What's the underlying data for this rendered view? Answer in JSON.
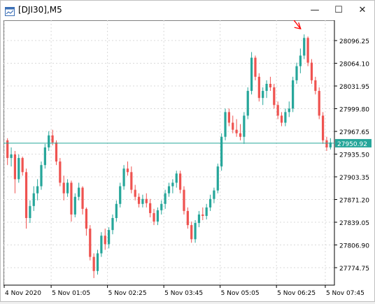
{
  "window": {
    "title": "[DJI30],M5",
    "minimize_label": "—",
    "maximize_label": "☐",
    "close_label": "✕",
    "icon": "chart-window-icon"
  },
  "colors": {
    "bull": "#26a69a",
    "bear": "#ef5350",
    "grid": "#d9d9d9",
    "price_line": "#26a69a",
    "price_label_bg": "#26a69a",
    "arrow": "#ff0000"
  },
  "chart_data": {
    "type": "candlestick",
    "title": "",
    "symbol": "DJI30",
    "timeframe": "M5",
    "current_price": 27950.92,
    "current_price_label": "27950.92",
    "ylim": [
      27750,
      28125
    ],
    "y_ticks": [
      "28096.25",
      "28064.10",
      "28031.95",
      "27999.80",
      "27967.65",
      "27935.50",
      "27903.35",
      "27871.20",
      "27839.05",
      "27806.90",
      "27774.75"
    ],
    "x_ticks": [
      "4 Nov 2020",
      "5 Nov 01:05",
      "5 Nov 02:25",
      "5 Nov 03:45",
      "5 Nov 05:05",
      "5 Nov 06:25",
      "5 Nov 07:45"
    ],
    "annotations": [
      {
        "type": "arrow",
        "color": "red",
        "near": "high"
      }
    ],
    "candles": [
      [
        27955,
        27958,
        27920,
        27930
      ],
      [
        27930,
        27945,
        27918,
        27935
      ],
      [
        27935,
        27940,
        27880,
        27900
      ],
      [
        27900,
        27935,
        27895,
        27930
      ],
      [
        27930,
        27932,
        27905,
        27910
      ],
      [
        27910,
        27915,
        27830,
        27845
      ],
      [
        27845,
        27870,
        27838,
        27862
      ],
      [
        27862,
        27890,
        27855,
        27880
      ],
      [
        27880,
        27900,
        27870,
        27890
      ],
      [
        27890,
        27925,
        27885,
        27920
      ],
      [
        27920,
        27950,
        27915,
        27945
      ],
      [
        27945,
        27968,
        27940,
        27962
      ],
      [
        27962,
        27970,
        27948,
        27952
      ],
      [
        27952,
        27955,
        27920,
        27925
      ],
      [
        27925,
        27930,
        27890,
        27895
      ],
      [
        27895,
        27905,
        27870,
        27880
      ],
      [
        27880,
        27900,
        27875,
        27895
      ],
      [
        27895,
        27898,
        27840,
        27850
      ],
      [
        27850,
        27880,
        27846,
        27875
      ],
      [
        27875,
        27895,
        27870,
        27888
      ],
      [
        27888,
        27890,
        27850,
        27858
      ],
      [
        27858,
        27860,
        27820,
        27830
      ],
      [
        27830,
        27835,
        27785,
        27790
      ],
      [
        27790,
        27795,
        27760,
        27770
      ],
      [
        27770,
        27800,
        27765,
        27795
      ],
      [
        27795,
        27825,
        27790,
        27820
      ],
      [
        27820,
        27830,
        27800,
        27808
      ],
      [
        27808,
        27832,
        27802,
        27828
      ],
      [
        27828,
        27850,
        27822,
        27845
      ],
      [
        27845,
        27870,
        27840,
        27865
      ],
      [
        27865,
        27895,
        27860,
        27890
      ],
      [
        27890,
        27920,
        27885,
        27915
      ],
      [
        27915,
        27925,
        27905,
        27910
      ],
      [
        27910,
        27918,
        27880,
        27885
      ],
      [
        27885,
        27892,
        27870,
        27875
      ],
      [
        27875,
        27880,
        27860,
        27865
      ],
      [
        27865,
        27878,
        27860,
        27872
      ],
      [
        27872,
        27880,
        27860,
        27866
      ],
      [
        27866,
        27872,
        27846,
        27852
      ],
      [
        27852,
        27858,
        27835,
        27840
      ],
      [
        27840,
        27860,
        27835,
        27856
      ],
      [
        27856,
        27870,
        27850,
        27865
      ],
      [
        27865,
        27885,
        27858,
        27880
      ],
      [
        27880,
        27895,
        27875,
        27890
      ],
      [
        27890,
        27900,
        27880,
        27895
      ],
      [
        27895,
        27912,
        27888,
        27908
      ],
      [
        27908,
        27912,
        27880,
        27885
      ],
      [
        27885,
        27890,
        27850,
        27855
      ],
      [
        27855,
        27860,
        27830,
        27835
      ],
      [
        27835,
        27840,
        27810,
        27815
      ],
      [
        27815,
        27842,
        27810,
        27838
      ],
      [
        27838,
        27855,
        27832,
        27850
      ],
      [
        27850,
        27860,
        27842,
        27848
      ],
      [
        27848,
        27865,
        27843,
        27860
      ],
      [
        27860,
        27878,
        27855,
        27872
      ],
      [
        27872,
        27888,
        27866,
        27884
      ],
      [
        27884,
        27922,
        27880,
        27918
      ],
      [
        27918,
        27965,
        27912,
        27960
      ],
      [
        27960,
        28000,
        27955,
        27995
      ],
      [
        27995,
        28000,
        27975,
        27980
      ],
      [
        27980,
        27990,
        27965,
        27970
      ],
      [
        27970,
        27985,
        27960,
        27965
      ],
      [
        27965,
        27978,
        27955,
        27960
      ],
      [
        27960,
        27995,
        27950,
        27990
      ],
      [
        27990,
        28030,
        27985,
        28025
      ],
      [
        28025,
        28080,
        28020,
        28072
      ],
      [
        28072,
        28075,
        28040,
        28045
      ],
      [
        28045,
        28050,
        28010,
        28015
      ],
      [
        28015,
        28030,
        28005,
        28025
      ],
      [
        28025,
        28040,
        28015,
        28035
      ],
      [
        28035,
        28045,
        28025,
        28030
      ],
      [
        28030,
        28035,
        28000,
        28005
      ],
      [
        28005,
        28010,
        27985,
        27990
      ],
      [
        27990,
        27995,
        27975,
        27980
      ],
      [
        27980,
        28000,
        27975,
        27995
      ],
      [
        27995,
        28010,
        27988,
        28000
      ],
      [
        28000,
        28045,
        27995,
        28040
      ],
      [
        28040,
        28065,
        28035,
        28060
      ],
      [
        28060,
        28085,
        28050,
        28075
      ],
      [
        28075,
        28105,
        28070,
        28100
      ],
      [
        28100,
        28102,
        28060,
        28065
      ],
      [
        28065,
        28070,
        28035,
        28040
      ],
      [
        28040,
        28045,
        28020,
        28025
      ],
      [
        28025,
        28030,
        27985,
        27990
      ],
      [
        27990,
        27995,
        27950,
        27955
      ],
      [
        27955,
        27960,
        27940,
        27945
      ],
      [
        27945,
        27958,
        27942,
        27952
      ]
    ]
  }
}
